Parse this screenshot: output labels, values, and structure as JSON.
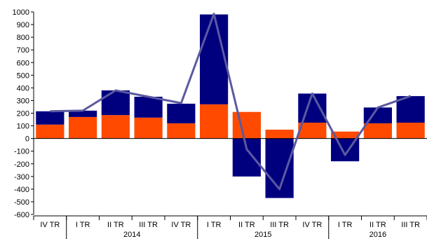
{
  "chart_data": {
    "type": "bar",
    "stacked": true,
    "title": "",
    "xlabel": "",
    "ylabel": "",
    "ylim": [
      -600,
      1000
    ],
    "yticks": [
      -600,
      -500,
      -400,
      -300,
      -200,
      -100,
      0,
      100,
      200,
      300,
      400,
      500,
      600,
      700,
      800,
      900,
      1000
    ],
    "grid": false,
    "legend": "none",
    "categories": [
      "IV TR",
      "I TR",
      "II TR",
      "III TR",
      "IV TR",
      "I TR",
      "II TR",
      "III TR",
      "IV TR",
      "I TR",
      "II TR",
      "III TR"
    ],
    "groups": [
      {
        "label": "2014",
        "start": 1,
        "end": 4
      },
      {
        "label": "2015",
        "start": 5,
        "end": 8
      },
      {
        "label": "2016",
        "start": 9,
        "end": 11
      }
    ],
    "series": [
      {
        "type": "bar",
        "color": "#ff4a00",
        "values": [
          110,
          170,
          185,
          165,
          120,
          270,
          210,
          70,
          125,
          55,
          120,
          125
        ]
      },
      {
        "type": "bar",
        "color": "#00007f",
        "values": [
          105,
          50,
          195,
          165,
          155,
          710,
          -300,
          -470,
          230,
          -180,
          125,
          210
        ]
      },
      {
        "type": "line",
        "color": "#5b59a0",
        "values": [
          215,
          220,
          380,
          330,
          280,
          985,
          -85,
          -400,
          355,
          -130,
          245,
          335
        ]
      }
    ]
  }
}
